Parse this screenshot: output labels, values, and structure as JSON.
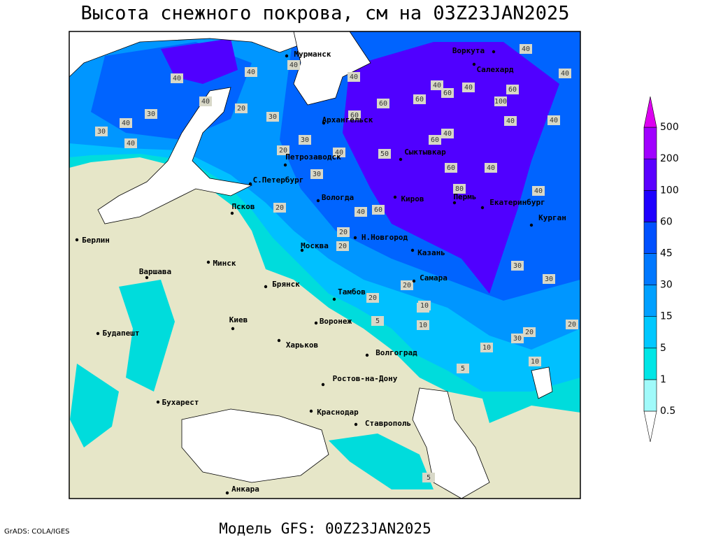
{
  "header": {
    "title": "Высота снежного покрова, см на 03Z23JAN2025"
  },
  "footer": {
    "model": "Модель GFS: 00Z23JAN2025",
    "credit": "GrADS: COLA/IGES"
  },
  "cities": [
    "Мурманск",
    "Воркута",
    "Салехард",
    "Архангельск",
    "Сыктывкар",
    "Петрозаводск",
    "С.Петербург",
    "Вологда",
    "Киров",
    "Пермь",
    "Екатеринбург",
    "Курган",
    "Псков",
    "Берлин",
    "Минск",
    "Москва",
    "Н.Новгород",
    "Казань",
    "Варшава",
    "Брянск",
    "Тамбов",
    "Самара",
    "Киев",
    "Воронеж",
    "Будапешт",
    "Харьков",
    "Волгоград",
    "Ростов-на-Дону",
    "Бухарест",
    "Краснодар",
    "Ставрополь",
    "Анкара"
  ],
  "contour_labels": [
    40,
    40,
    40,
    30,
    30,
    40,
    40,
    20,
    40,
    30,
    40,
    40,
    60,
    60,
    60,
    40,
    60,
    100,
    40,
    60,
    40,
    20,
    30,
    40,
    50,
    40,
    60,
    60,
    40,
    40,
    80,
    40,
    30,
    20,
    20,
    60,
    40,
    30,
    20,
    10,
    20,
    10,
    20,
    30,
    20,
    10,
    5,
    5,
    10,
    5,
    20,
    40,
    30,
    20
  ],
  "colorbar": {
    "levels": [
      0.5,
      1,
      5,
      15,
      30,
      45,
      60,
      100,
      200,
      500
    ],
    "colors": [
      "#ffffff",
      "#a0fafa",
      "#00e6e6",
      "#00c8ff",
      "#00a0ff",
      "#0078ff",
      "#0050ff",
      "#1e00ff",
      "#5a00ff",
      "#a000ff",
      "#dc00f0"
    ]
  }
}
